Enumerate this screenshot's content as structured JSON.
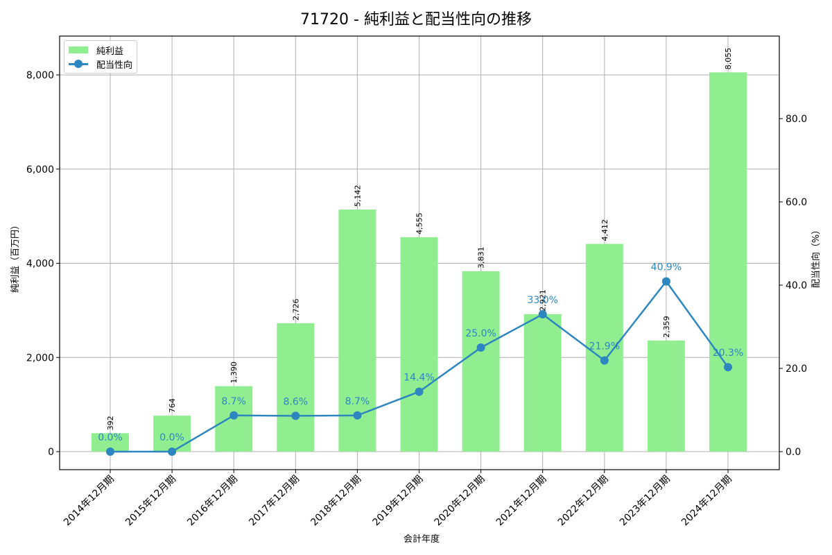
{
  "title": "71720 - 純利益と配当性向の推移",
  "legend": {
    "bar_label": "純利益",
    "line_label": "配当性向"
  },
  "chart_data": {
    "type": "bar+line",
    "title": "71720 - 純利益と配当性向の推移",
    "xlabel": "会計年度",
    "ylabel": "純利益（百万円）",
    "y2label": "配当性向（%）",
    "categories": [
      "2014年12月期",
      "2015年12月期",
      "2016年12月期",
      "2017年12月期",
      "2018年12月期",
      "2019年12月期",
      "2020年12月期",
      "2021年12月期",
      "2022年12月期",
      "2023年12月期",
      "2024年12月期"
    ],
    "series": [
      {
        "name": "純利益",
        "type": "bar",
        "axis": "left",
        "color": "#90ee90",
        "values": [
          392,
          764,
          1390,
          2726,
          5142,
          4555,
          3831,
          2921,
          4412,
          2359,
          8055
        ],
        "labels": [
          "392",
          "764",
          "1,390",
          "2,726",
          "5,142",
          "4,555",
          "3,831",
          "2,921",
          "4,412",
          "2,359",
          "8,055"
        ]
      },
      {
        "name": "配当性向",
        "type": "line",
        "axis": "right",
        "color": "#2e86c1",
        "values": [
          0.0,
          0.0,
          8.7,
          8.6,
          8.7,
          14.4,
          25.0,
          33.0,
          21.9,
          40.9,
          20.3
        ],
        "labels": [
          "0.0%",
          "0.0%",
          "8.7%",
          "8.6%",
          "8.7%",
          "14.4%",
          "25.0%",
          "33.0%",
          "21.9%",
          "40.9%",
          "20.3%"
        ]
      }
    ],
    "ylim": [
      -400,
      8800
    ],
    "y2lim": [
      -4,
      98
    ],
    "yticks": [
      "0",
      "2,000",
      "4,000",
      "6,000",
      "8,000"
    ],
    "y2ticks": [
      "0.0",
      "20.0",
      "40.0",
      "60.0",
      "80.0"
    ],
    "grid": true,
    "legend_position": "upper left"
  }
}
